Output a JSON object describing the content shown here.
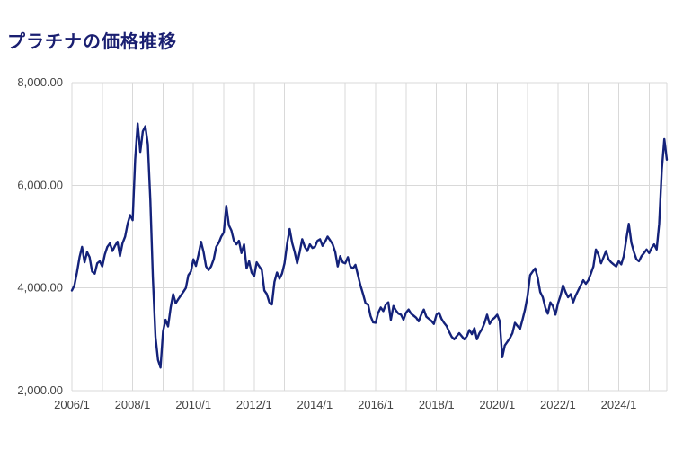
{
  "page": {
    "title": "プラチナの価格推移"
  },
  "chart_data": {
    "type": "line",
    "title": "プラチナの価格推移",
    "series_name": "platinum-price-jpy",
    "x_start": "2006/1",
    "x_end": "2025/8",
    "x_tick_labels": [
      "2006/1",
      "2008/1",
      "2010/1",
      "2012/1",
      "2014/1",
      "2016/1",
      "2018/1",
      "2020/1",
      "2022/1",
      "2024/1"
    ],
    "y_ticks": [
      2000,
      4000,
      6000,
      8000
    ],
    "y_tick_labels": [
      "2,000.00",
      "4,000.00",
      "6,000.00",
      "8,000.00"
    ],
    "ylim": [
      2000,
      8000
    ],
    "grid": true,
    "legend": "none",
    "line_color": "#14227a",
    "grid_color": "#d9d9d9",
    "title_color": "#1a1f71",
    "values": [
      3950,
      4050,
      4300,
      4600,
      4800,
      4500,
      4700,
      4600,
      4320,
      4280,
      4480,
      4520,
      4420,
      4650,
      4800,
      4870,
      4720,
      4820,
      4900,
      4620,
      4870,
      5000,
      5250,
      5420,
      5320,
      6500,
      7200,
      6650,
      7050,
      7150,
      6800,
      5700,
      4200,
      3050,
      2600,
      2450,
      3150,
      3380,
      3250,
      3620,
      3880,
      3700,
      3780,
      3850,
      3920,
      4000,
      4250,
      4320,
      4560,
      4430,
      4650,
      4900,
      4700,
      4420,
      4350,
      4420,
      4560,
      4800,
      4880,
      5000,
      5080,
      5600,
      5220,
      5120,
      4920,
      4850,
      4920,
      4680,
      4850,
      4380,
      4520,
      4300,
      4230,
      4500,
      4420,
      4350,
      3950,
      3880,
      3720,
      3680,
      4120,
      4300,
      4180,
      4280,
      4480,
      4850,
      5150,
      4880,
      4700,
      4480,
      4700,
      4950,
      4800,
      4720,
      4850,
      4780,
      4800,
      4920,
      4950,
      4820,
      4900,
      5000,
      4930,
      4850,
      4700,
      4420,
      4620,
      4500,
      4480,
      4600,
      4420,
      4380,
      4450,
      4250,
      4050,
      3880,
      3700,
      3680,
      3450,
      3330,
      3320,
      3520,
      3620,
      3550,
      3680,
      3720,
      3380,
      3650,
      3560,
      3500,
      3480,
      3380,
      3520,
      3580,
      3500,
      3460,
      3420,
      3350,
      3480,
      3580,
      3440,
      3400,
      3360,
      3300,
      3480,
      3520,
      3400,
      3320,
      3260,
      3150,
      3050,
      3000,
      3060,
      3120,
      3060,
      3000,
      3060,
      3180,
      3100,
      3220,
      3000,
      3120,
      3200,
      3320,
      3480,
      3300,
      3380,
      3420,
      3480,
      3350,
      2650,
      2880,
      2950,
      3020,
      3120,
      3320,
      3260,
      3200,
      3380,
      3580,
      3850,
      4250,
      4320,
      4380,
      4200,
      3920,
      3820,
      3620,
      3500,
      3720,
      3650,
      3480,
      3700,
      3850,
      4050,
      3920,
      3820,
      3880,
      3720,
      3850,
      3950,
      4050,
      4150,
      4080,
      4150,
      4280,
      4420,
      4750,
      4650,
      4480,
      4600,
      4720,
      4560,
      4500,
      4460,
      4420,
      4520,
      4460,
      4620,
      4950,
      5250,
      4880,
      4700,
      4560,
      4520,
      4620,
      4680,
      4750,
      4680,
      4780,
      4850,
      4750,
      5250,
      6300,
      6900,
      6500
    ]
  }
}
